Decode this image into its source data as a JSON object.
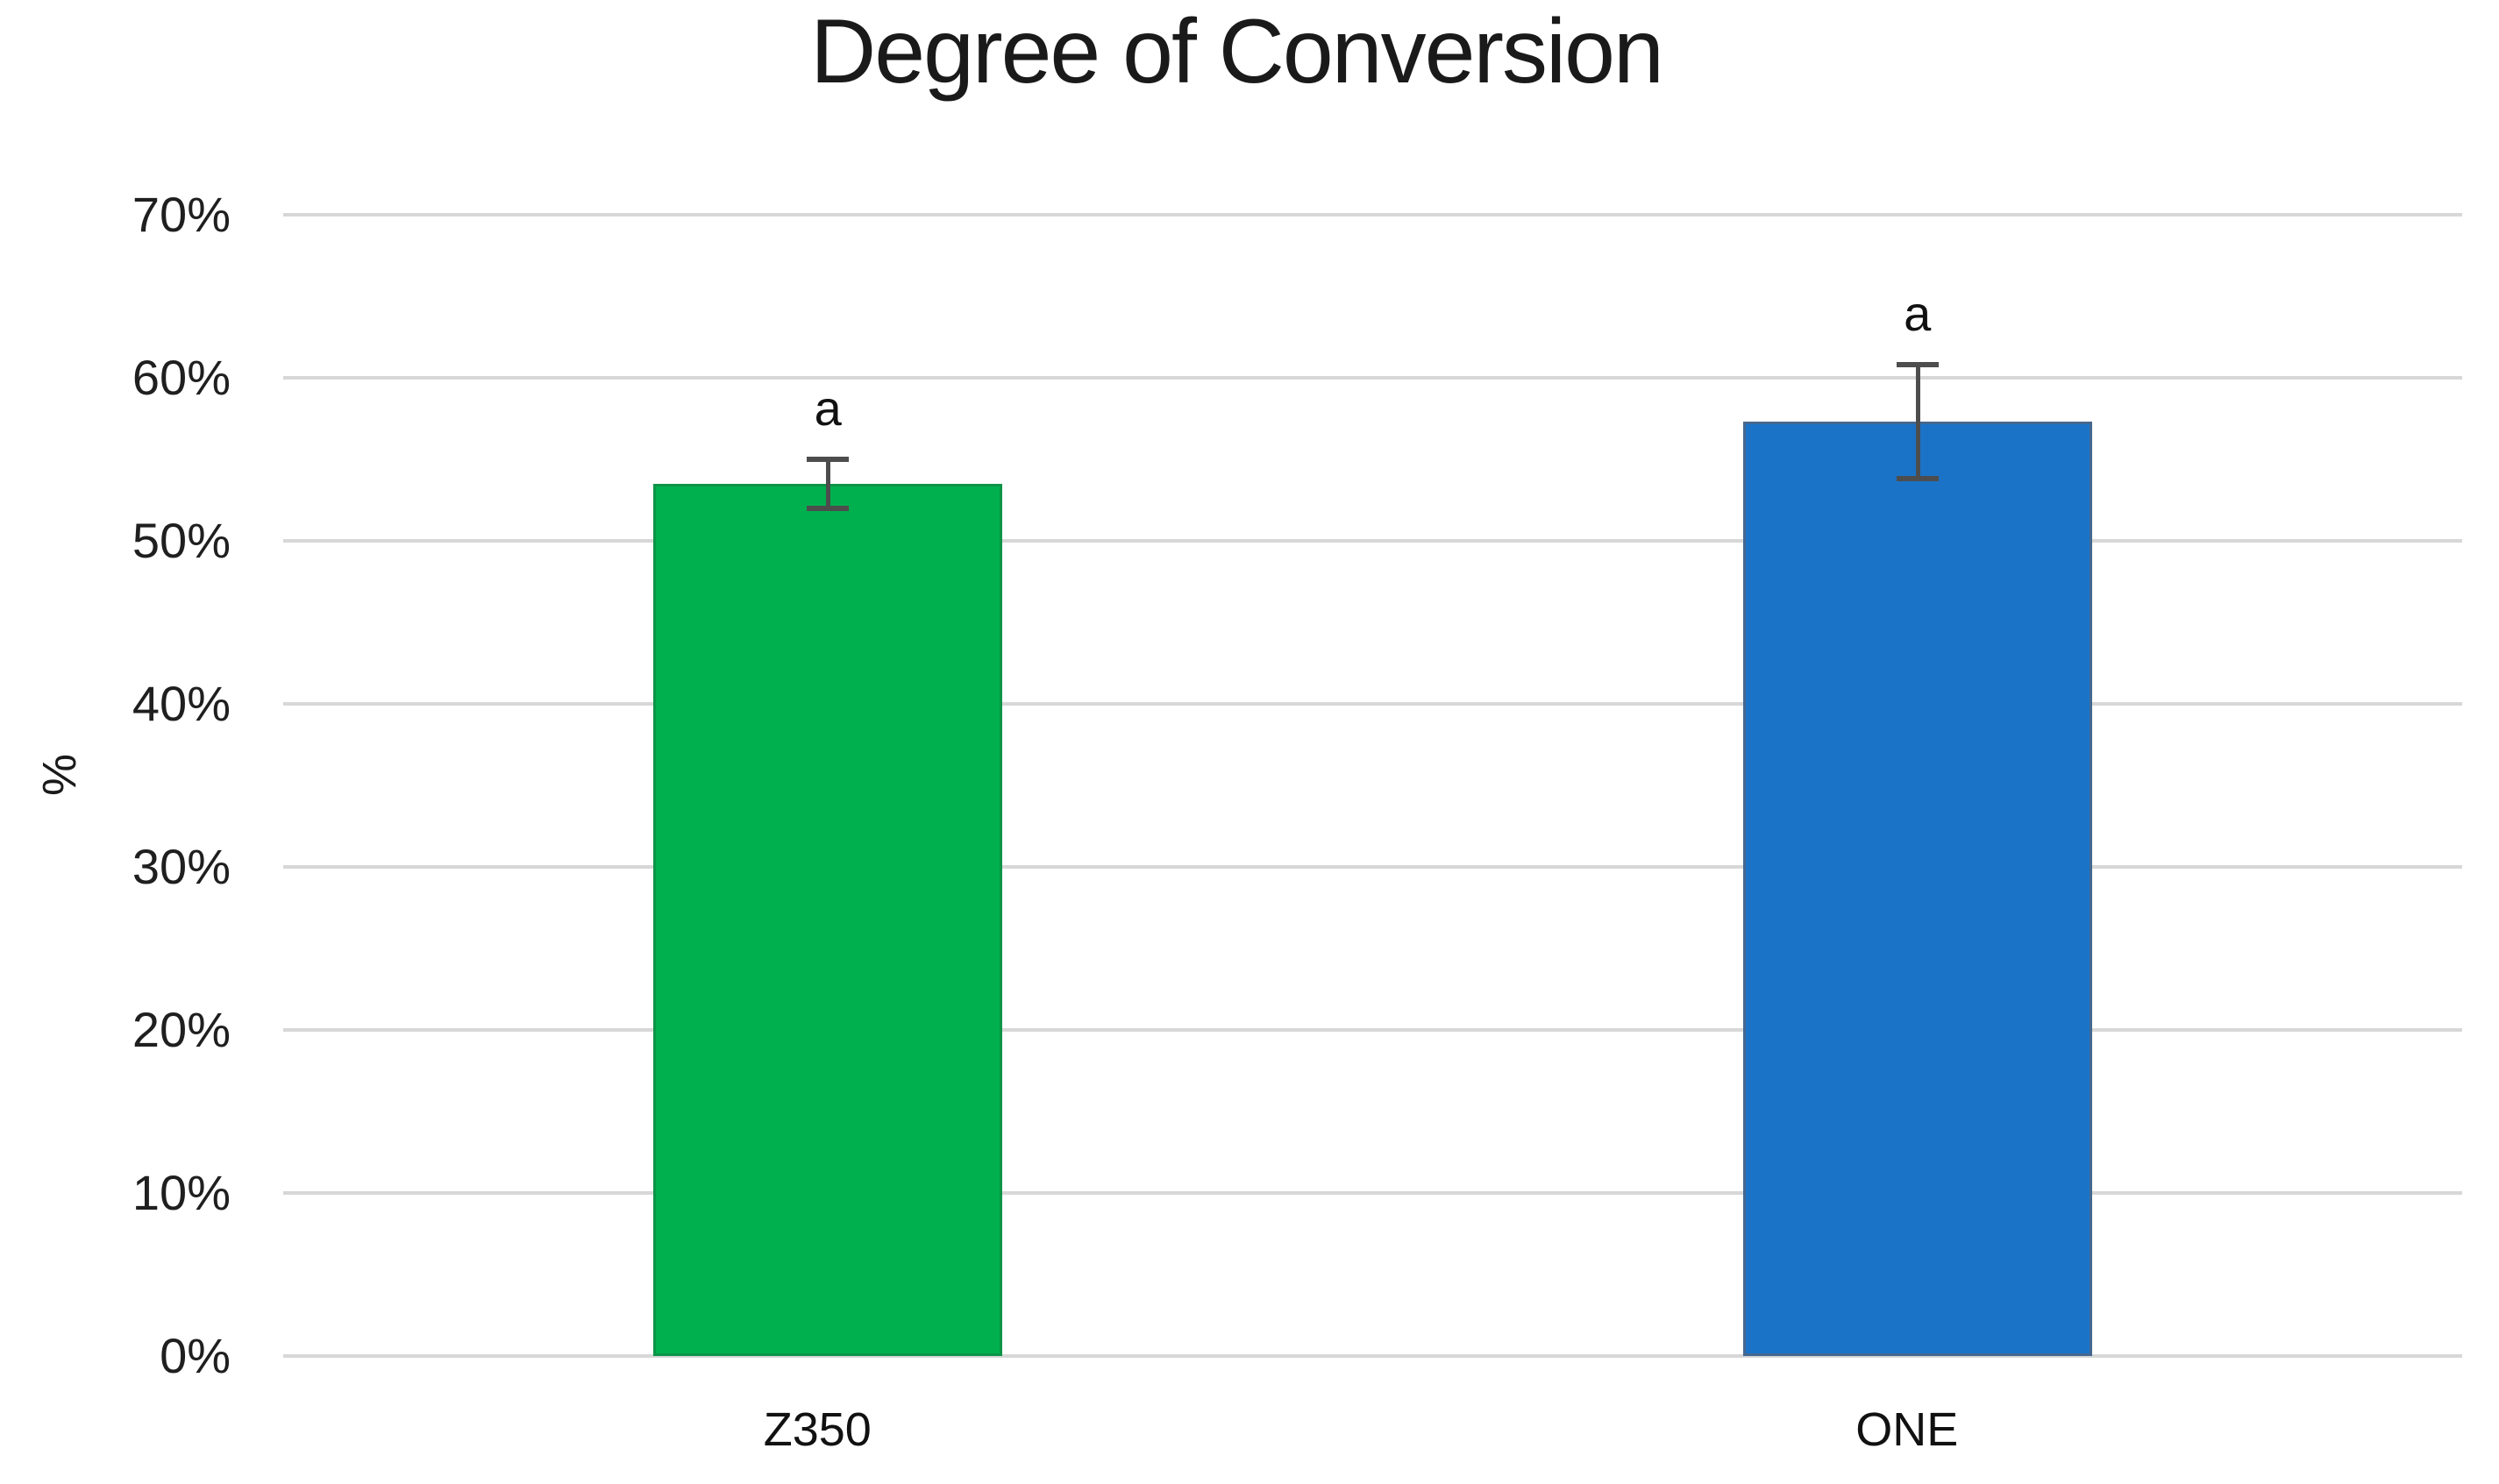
{
  "chart_data": {
    "type": "bar",
    "title": "Degree of Conversion",
    "ylabel": "%",
    "categories": [
      "Z350",
      "ONE"
    ],
    "values": [
      53.5,
      57.3
    ],
    "errors": [
      1.5,
      3.5
    ],
    "point_labels": [
      "a",
      "a"
    ],
    "ylim": [
      0,
      70
    ],
    "ytick_step": 10,
    "ytick_labels": [
      "0%",
      "10%",
      "20%",
      "30%",
      "40%",
      "50%",
      "60%",
      "70%"
    ],
    "grid": true,
    "legend": "none",
    "colors": {
      "bar_fills": [
        "#00B04F",
        "#1B73C8"
      ],
      "bar_borders": [
        "#0C9448",
        "#44688F"
      ],
      "gridline": "#D7D7D7",
      "error_bar": "#4D4D4D",
      "text": "#1A1A1A",
      "background": "#FFFFFF"
    }
  }
}
